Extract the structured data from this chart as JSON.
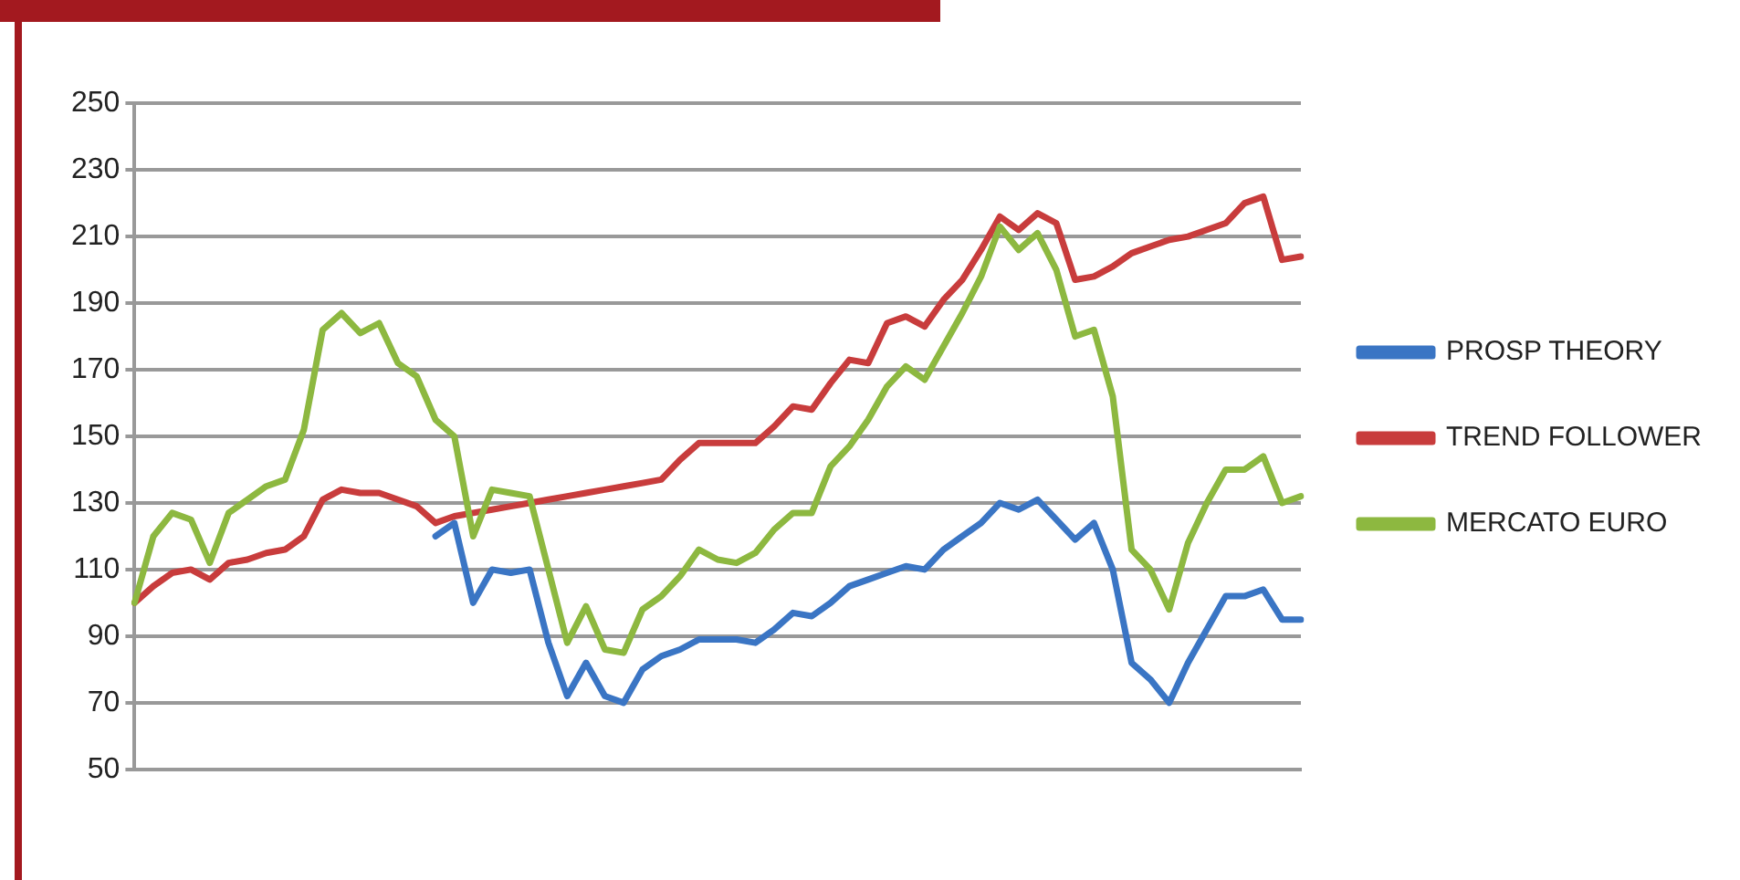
{
  "chart_data": {
    "type": "line",
    "categories": [
      null,
      null,
      null,
      null,
      null,
      null,
      null,
      null,
      null,
      null,
      null,
      null,
      null,
      null,
      null,
      null,
      null,
      null,
      null,
      null,
      null,
      null,
      null,
      null,
      null,
      null,
      null,
      null,
      null,
      null,
      null,
      null,
      null,
      null,
      null,
      null,
      null,
      null,
      null,
      null,
      null,
      null,
      null,
      null,
      null,
      null,
      null,
      null,
      null,
      null,
      null,
      null,
      null,
      null,
      null,
      null,
      null,
      null,
      null,
      null,
      null,
      null,
      null
    ],
    "series": [
      {
        "name": "PROSP THEORY",
        "color": "#3a75c4",
        "values": [
          null,
          null,
          null,
          null,
          null,
          null,
          null,
          null,
          null,
          null,
          null,
          null,
          null,
          null,
          null,
          null,
          120,
          124,
          100,
          110,
          109,
          110,
          88,
          72,
          82,
          72,
          70,
          80,
          84,
          86,
          89,
          89,
          89,
          88,
          92,
          97,
          96,
          100,
          105,
          107,
          109,
          111,
          110,
          116,
          120,
          124,
          130,
          128,
          131,
          125,
          119,
          124,
          110,
          82,
          77,
          70,
          82,
          92,
          102,
          102,
          104,
          95,
          95
        ]
      },
      {
        "name": "TREND FOLLOWER",
        "color": "#c83c3c",
        "values": [
          100,
          105,
          109,
          110,
          107,
          112,
          113,
          115,
          116,
          120,
          131,
          134,
          133,
          133,
          131,
          129,
          124,
          126,
          127,
          128,
          129,
          130,
          131,
          132,
          133,
          134,
          135,
          136,
          137,
          143,
          148,
          148,
          148,
          148,
          153,
          159,
          158,
          166,
          173,
          172,
          184,
          186,
          183,
          191,
          197,
          206,
          216,
          212,
          217,
          214,
          197,
          198,
          201,
          205,
          207,
          209,
          210,
          212,
          214,
          220,
          222,
          203,
          204
        ]
      },
      {
        "name": "MERCATO EURO",
        "color": "#8db840",
        "values": [
          100,
          120,
          127,
          125,
          112,
          127,
          131,
          135,
          137,
          152,
          182,
          187,
          181,
          184,
          172,
          168,
          155,
          150,
          120,
          134,
          133,
          132,
          110,
          88,
          99,
          86,
          85,
          98,
          102,
          108,
          116,
          113,
          112,
          115,
          122,
          127,
          127,
          141,
          147,
          155,
          165,
          171,
          167,
          177,
          187,
          198,
          213,
          206,
          211,
          200,
          180,
          182,
          162,
          116,
          110,
          98,
          118,
          130,
          140,
          140,
          144,
          130,
          132
        ]
      }
    ],
    "ylim": [
      50,
      250
    ],
    "yticks": [
      50,
      70,
      90,
      110,
      130,
      150,
      170,
      190,
      210,
      230,
      250
    ],
    "grid": "y",
    "legend": "right",
    "marker": "none",
    "line_style": "solid"
  }
}
